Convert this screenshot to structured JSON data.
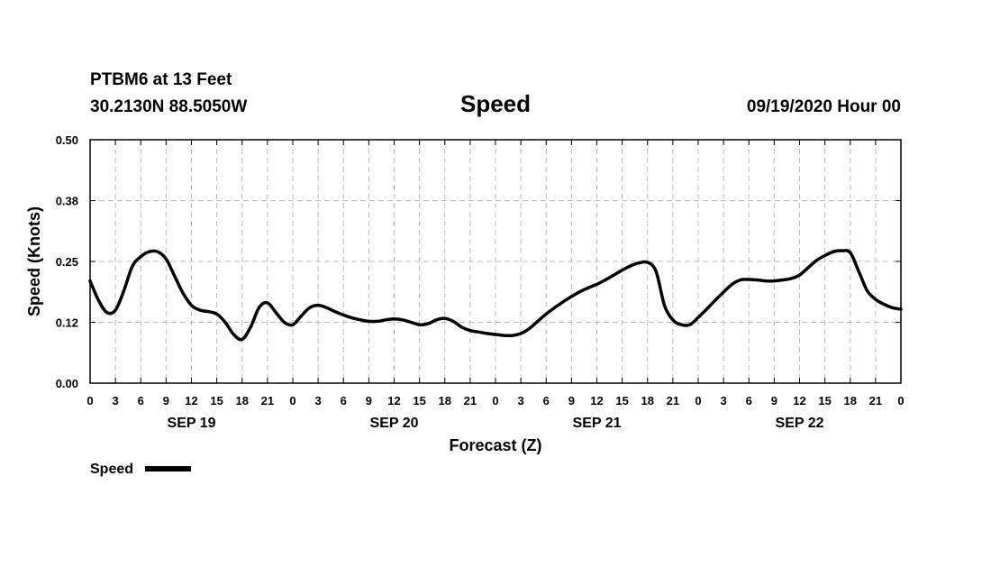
{
  "header": {
    "station": "PTBM6 at 13 Feet",
    "coords": "30.2130N 88.5050W",
    "title": "Speed",
    "datetime": "09/19/2020 Hour 00"
  },
  "legend": {
    "label": "Speed"
  },
  "chart_data": {
    "type": "line",
    "title": "Speed",
    "xlabel": "Forecast (Z)",
    "ylabel": "Speed (Knots)",
    "ylim": [
      0,
      0.5
    ],
    "yticks": [
      "0.00",
      "0.12",
      "0.25",
      "0.38",
      "0.50"
    ],
    "xlim_hours": [
      0,
      96
    ],
    "xtick_step_hours": 3,
    "xtick_labels": [
      "0",
      "3",
      "6",
      "9",
      "12",
      "15",
      "18",
      "21",
      "0",
      "3",
      "6",
      "9",
      "12",
      "15",
      "18",
      "21",
      "0",
      "3",
      "6",
      "9",
      "12",
      "15",
      "18",
      "21",
      "0",
      "3",
      "6",
      "9",
      "12",
      "15",
      "18",
      "21",
      "0"
    ],
    "day_labels": [
      {
        "label": "SEP 19",
        "hour": 12
      },
      {
        "label": "SEP 20",
        "hour": 36
      },
      {
        "label": "SEP 21",
        "hour": 60
      },
      {
        "label": "SEP 22",
        "hour": 84
      }
    ],
    "grid": true,
    "legend_position": "bottom-left",
    "series": [
      {
        "name": "Speed",
        "color": "#000000",
        "x": [
          0,
          1,
          2,
          3,
          4,
          5,
          6,
          7,
          8,
          9,
          10,
          11,
          12,
          13,
          14,
          15,
          16,
          17,
          18,
          19,
          20,
          21,
          22,
          23,
          24,
          25,
          26,
          27,
          28,
          29,
          30,
          31,
          32,
          33,
          34,
          35,
          36,
          37,
          38,
          39,
          40,
          41,
          42,
          43,
          44,
          45,
          46,
          47,
          48,
          49,
          50,
          51,
          52,
          53,
          54,
          55,
          56,
          57,
          58,
          59,
          60,
          61,
          62,
          63,
          64,
          65,
          66,
          67,
          68,
          69,
          70,
          71,
          72,
          73,
          74,
          75,
          76,
          77,
          78,
          79,
          80,
          81,
          82,
          83,
          84,
          85,
          86,
          87,
          88,
          89,
          90,
          91,
          92,
          93,
          94,
          95,
          96
        ],
        "values": [
          0.21,
          0.17,
          0.145,
          0.15,
          0.19,
          0.24,
          0.26,
          0.27,
          0.27,
          0.255,
          0.22,
          0.185,
          0.16,
          0.15,
          0.147,
          0.142,
          0.125,
          0.1,
          0.09,
          0.115,
          0.155,
          0.165,
          0.145,
          0.125,
          0.12,
          0.138,
          0.155,
          0.16,
          0.155,
          0.147,
          0.14,
          0.134,
          0.13,
          0.127,
          0.127,
          0.13,
          0.132,
          0.13,
          0.125,
          0.12,
          0.122,
          0.13,
          0.133,
          0.127,
          0.115,
          0.108,
          0.105,
          0.102,
          0.1,
          0.098,
          0.098,
          0.102,
          0.112,
          0.127,
          0.142,
          0.155,
          0.167,
          0.178,
          0.188,
          0.196,
          0.203,
          0.212,
          0.222,
          0.232,
          0.241,
          0.247,
          0.248,
          0.23,
          0.16,
          0.13,
          0.12,
          0.12,
          0.135,
          0.152,
          0.17,
          0.187,
          0.203,
          0.212,
          0.213,
          0.212,
          0.21,
          0.21,
          0.212,
          0.215,
          0.222,
          0.237,
          0.252,
          0.262,
          0.27,
          0.272,
          0.268,
          0.23,
          0.19,
          0.172,
          0.162,
          0.155,
          0.152
        ]
      }
    ]
  }
}
